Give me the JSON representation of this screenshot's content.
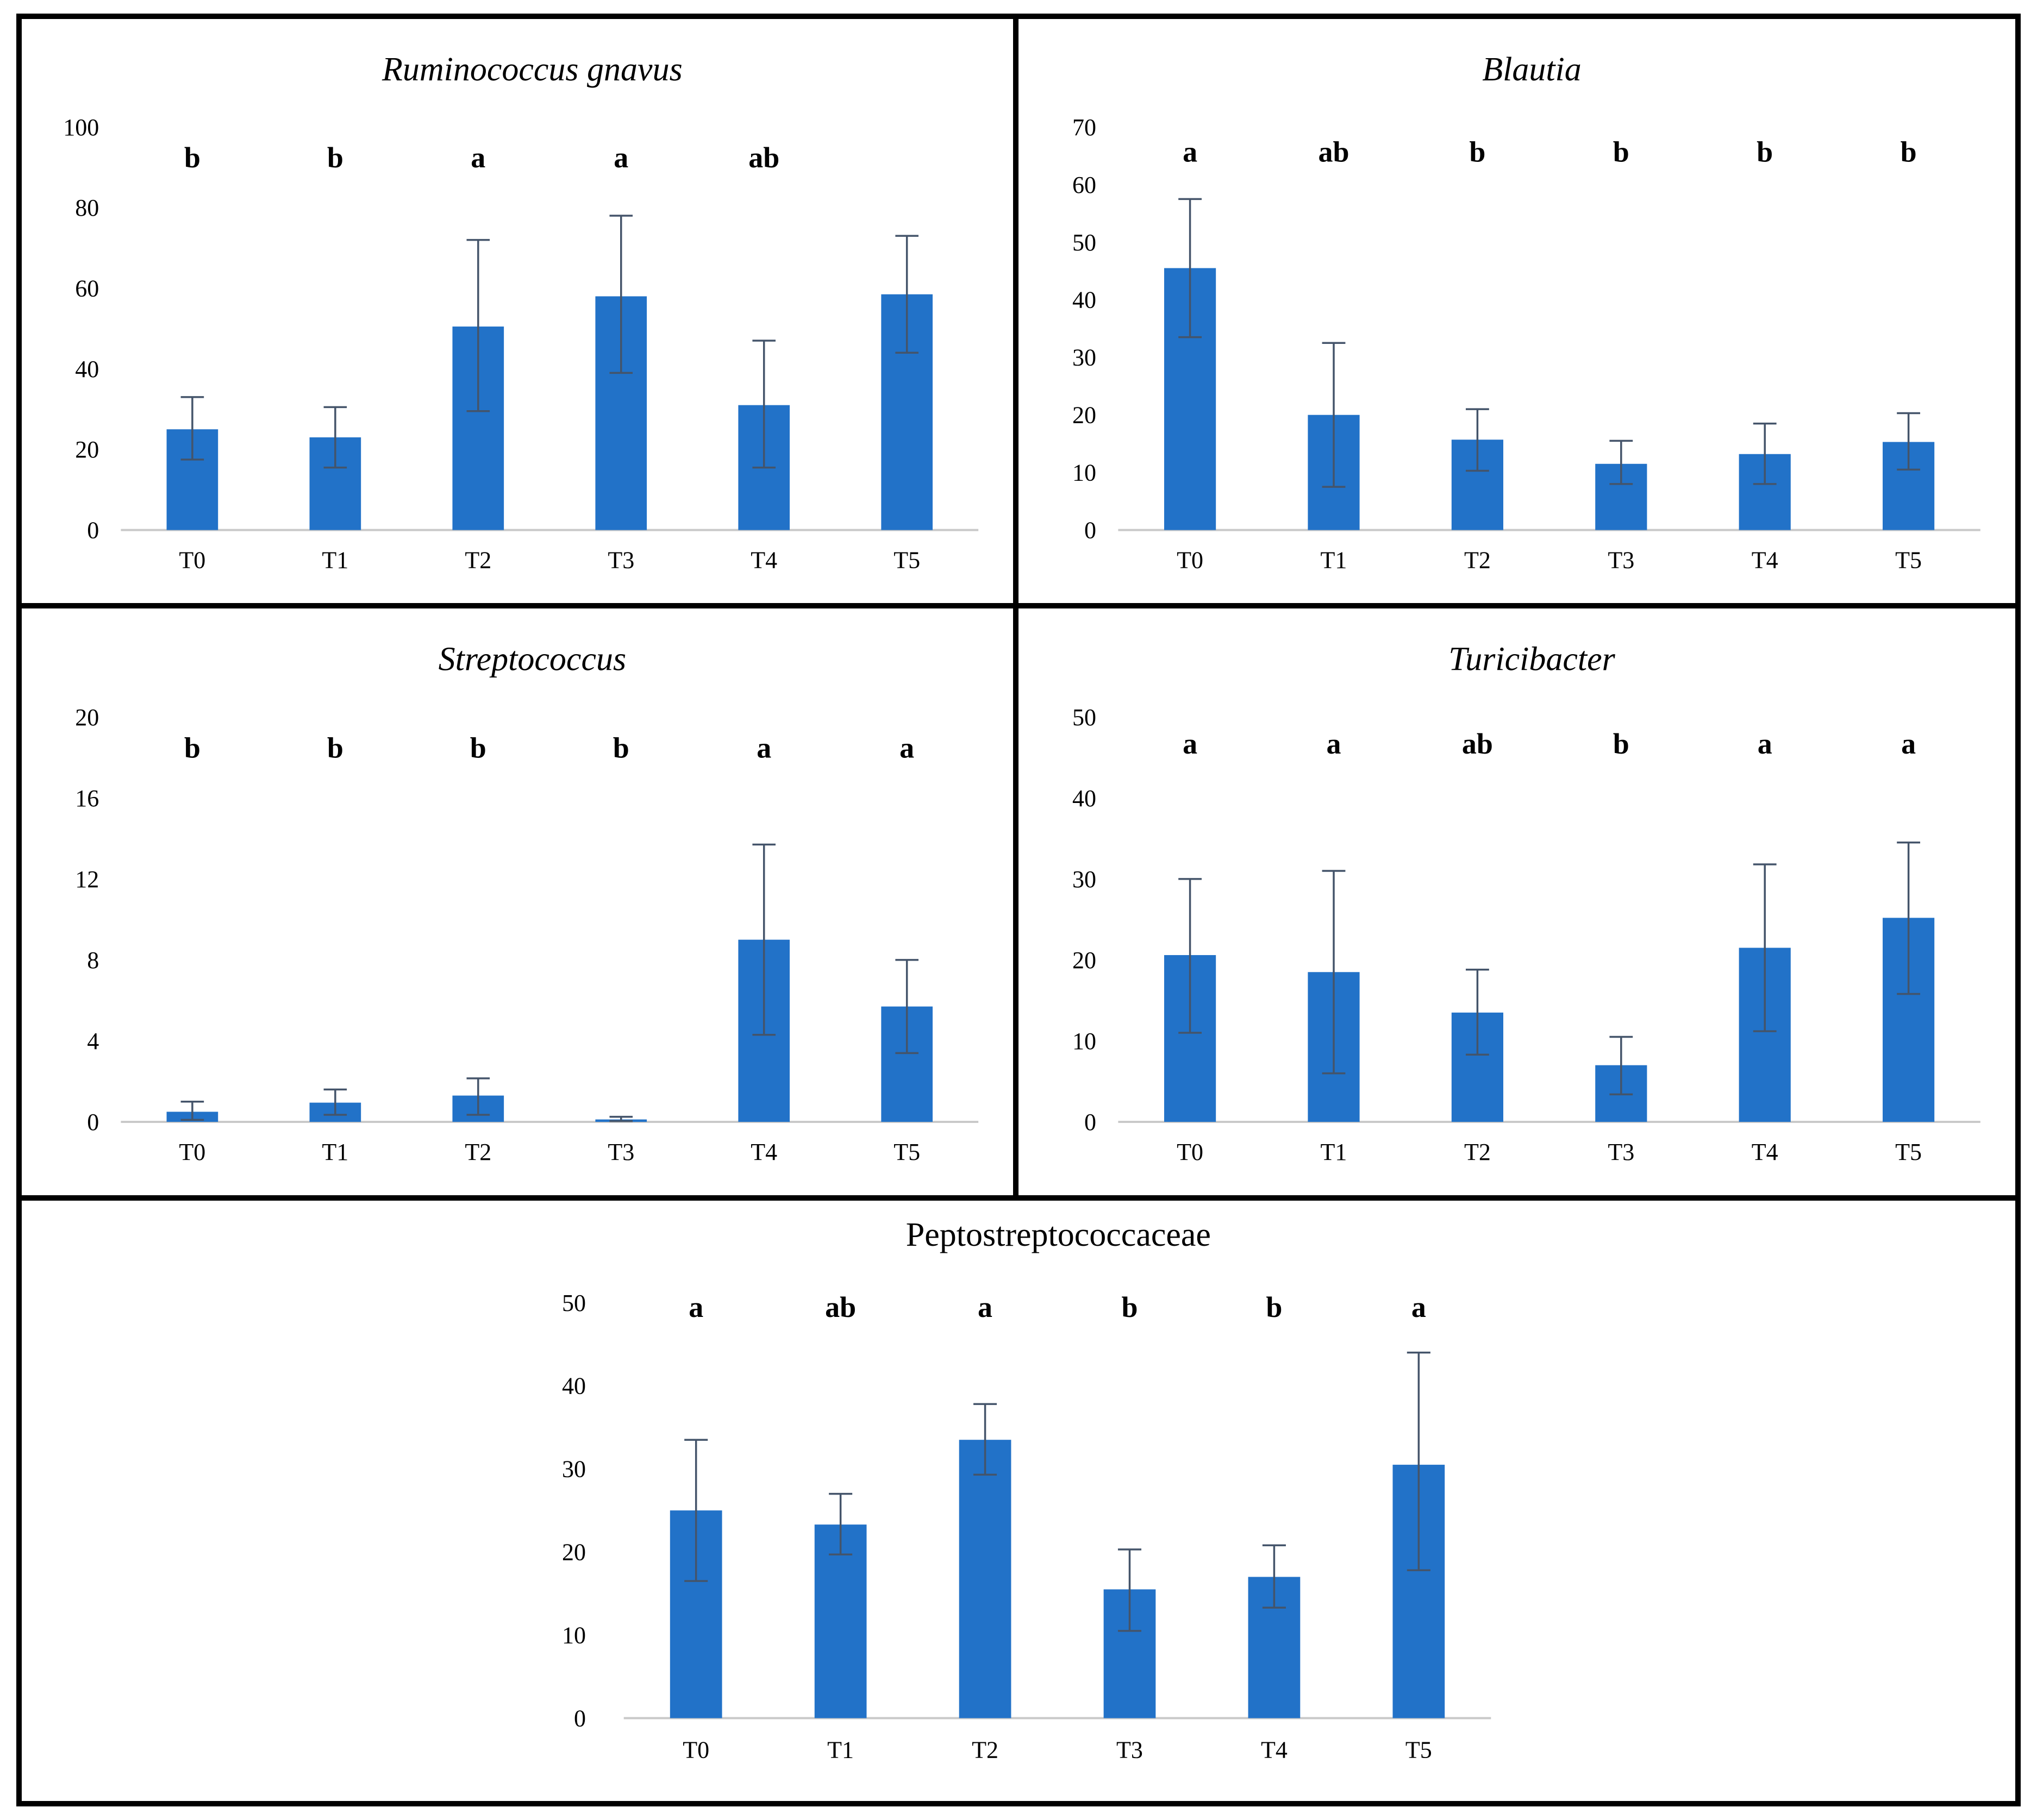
{
  "figure": {
    "description": "Five bar charts of bacterial relative abundance across time points T0-T5 with SD error bars and significance letters",
    "border_color": "#000000",
    "background": "#ffffff"
  },
  "style": {
    "bar_color": "#2272C8",
    "error_bar_color": "#44546A",
    "axis_line_color": "#C9C9C9",
    "text_color": "#000000"
  },
  "chart_data": [
    {
      "type": "bar",
      "title": "Ruminococcus gnavus",
      "title_italic": true,
      "categories": [
        "T0",
        "T1",
        "T2",
        "T3",
        "T4",
        "T5"
      ],
      "values": [
        25,
        23,
        50.5,
        58,
        31,
        58.5
      ],
      "error_lower": [
        17.5,
        15.5,
        29.5,
        39,
        15.5,
        44
      ],
      "error_upper": [
        33,
        30.5,
        72,
        78,
        47,
        73
      ],
      "sig_letters": [
        "b",
        "b",
        "a",
        "a",
        "ab",
        ""
      ],
      "sig_letter_y": 90,
      "ylim": [
        0,
        100
      ],
      "yticks": [
        0,
        20,
        40,
        60,
        80,
        100
      ],
      "xlabel": "",
      "ylabel": "",
      "grid": false,
      "legend": false
    },
    {
      "type": "bar",
      "title": "Blautia",
      "title_italic": true,
      "categories": [
        "T0",
        "T1",
        "T2",
        "T3",
        "T4",
        "T5"
      ],
      "values": [
        45.5,
        20,
        15.7,
        11.5,
        13.2,
        15.3
      ],
      "error_lower": [
        33.5,
        7.5,
        10.3,
        8,
        8,
        10.5
      ],
      "error_upper": [
        57.5,
        32.5,
        21,
        15.5,
        18.5,
        20.3
      ],
      "sig_letters": [
        "a",
        "ab",
        "b",
        "b",
        "b",
        "b"
      ],
      "sig_letter_y": 64,
      "ylim": [
        0,
        70
      ],
      "yticks": [
        0,
        10,
        20,
        30,
        40,
        50,
        60,
        70
      ],
      "xlabel": "",
      "ylabel": "",
      "grid": false,
      "legend": false
    },
    {
      "type": "bar",
      "title": "Streptococcus",
      "title_italic": true,
      "categories": [
        "T0",
        "T1",
        "T2",
        "T3",
        "T4",
        "T5"
      ],
      "values": [
        0.5,
        0.95,
        1.3,
        0.12,
        9.0,
        5.7
      ],
      "error_lower": [
        0.1,
        0.35,
        0.35,
        0.04,
        4.3,
        3.4
      ],
      "error_upper": [
        1.0,
        1.6,
        2.15,
        0.25,
        13.7,
        8.0
      ],
      "sig_letters": [
        "b",
        "b",
        "b",
        "b",
        "a",
        "a"
      ],
      "sig_letter_y": 18,
      "ylim": [
        0,
        20
      ],
      "yticks": [
        0,
        4,
        8,
        12,
        16,
        20
      ],
      "xlabel": "",
      "ylabel": "",
      "grid": false,
      "legend": false
    },
    {
      "type": "bar",
      "title": "Turicibacter",
      "title_italic": true,
      "categories": [
        "T0",
        "T1",
        "T2",
        "T3",
        "T4",
        "T5"
      ],
      "values": [
        20.6,
        18.5,
        13.5,
        7.0,
        21.5,
        25.2
      ],
      "error_lower": [
        11,
        6,
        8.3,
        3.4,
        11.2,
        15.8
      ],
      "error_upper": [
        30,
        31,
        18.8,
        10.5,
        31.8,
        34.5
      ],
      "sig_letters": [
        "a",
        "a",
        "ab",
        "b",
        "a",
        "a"
      ],
      "sig_letter_y": 45.5,
      "ylim": [
        0,
        50
      ],
      "yticks": [
        0,
        10,
        20,
        30,
        40,
        50
      ],
      "xlabel": "",
      "ylabel": "",
      "grid": false,
      "legend": false
    },
    {
      "type": "bar",
      "title": "Peptostreptococcaceae",
      "title_italic": false,
      "categories": [
        "T0",
        "T1",
        "T2",
        "T3",
        "T4",
        "T5"
      ],
      "values": [
        25,
        23.3,
        33.5,
        15.5,
        17,
        30.5
      ],
      "error_lower": [
        16.5,
        19.7,
        29.3,
        10.5,
        13.3,
        17.8
      ],
      "error_upper": [
        33.5,
        27,
        37.8,
        20.3,
        20.8,
        44
      ],
      "sig_letters": [
        "a",
        "ab",
        "a",
        "b",
        "b",
        "a"
      ],
      "sig_letter_y": 48.3,
      "ylim": [
        0,
        50
      ],
      "yticks": [
        0,
        10,
        20,
        30,
        40,
        50
      ],
      "xlabel": "",
      "ylabel": "",
      "grid": false,
      "legend": false
    }
  ]
}
